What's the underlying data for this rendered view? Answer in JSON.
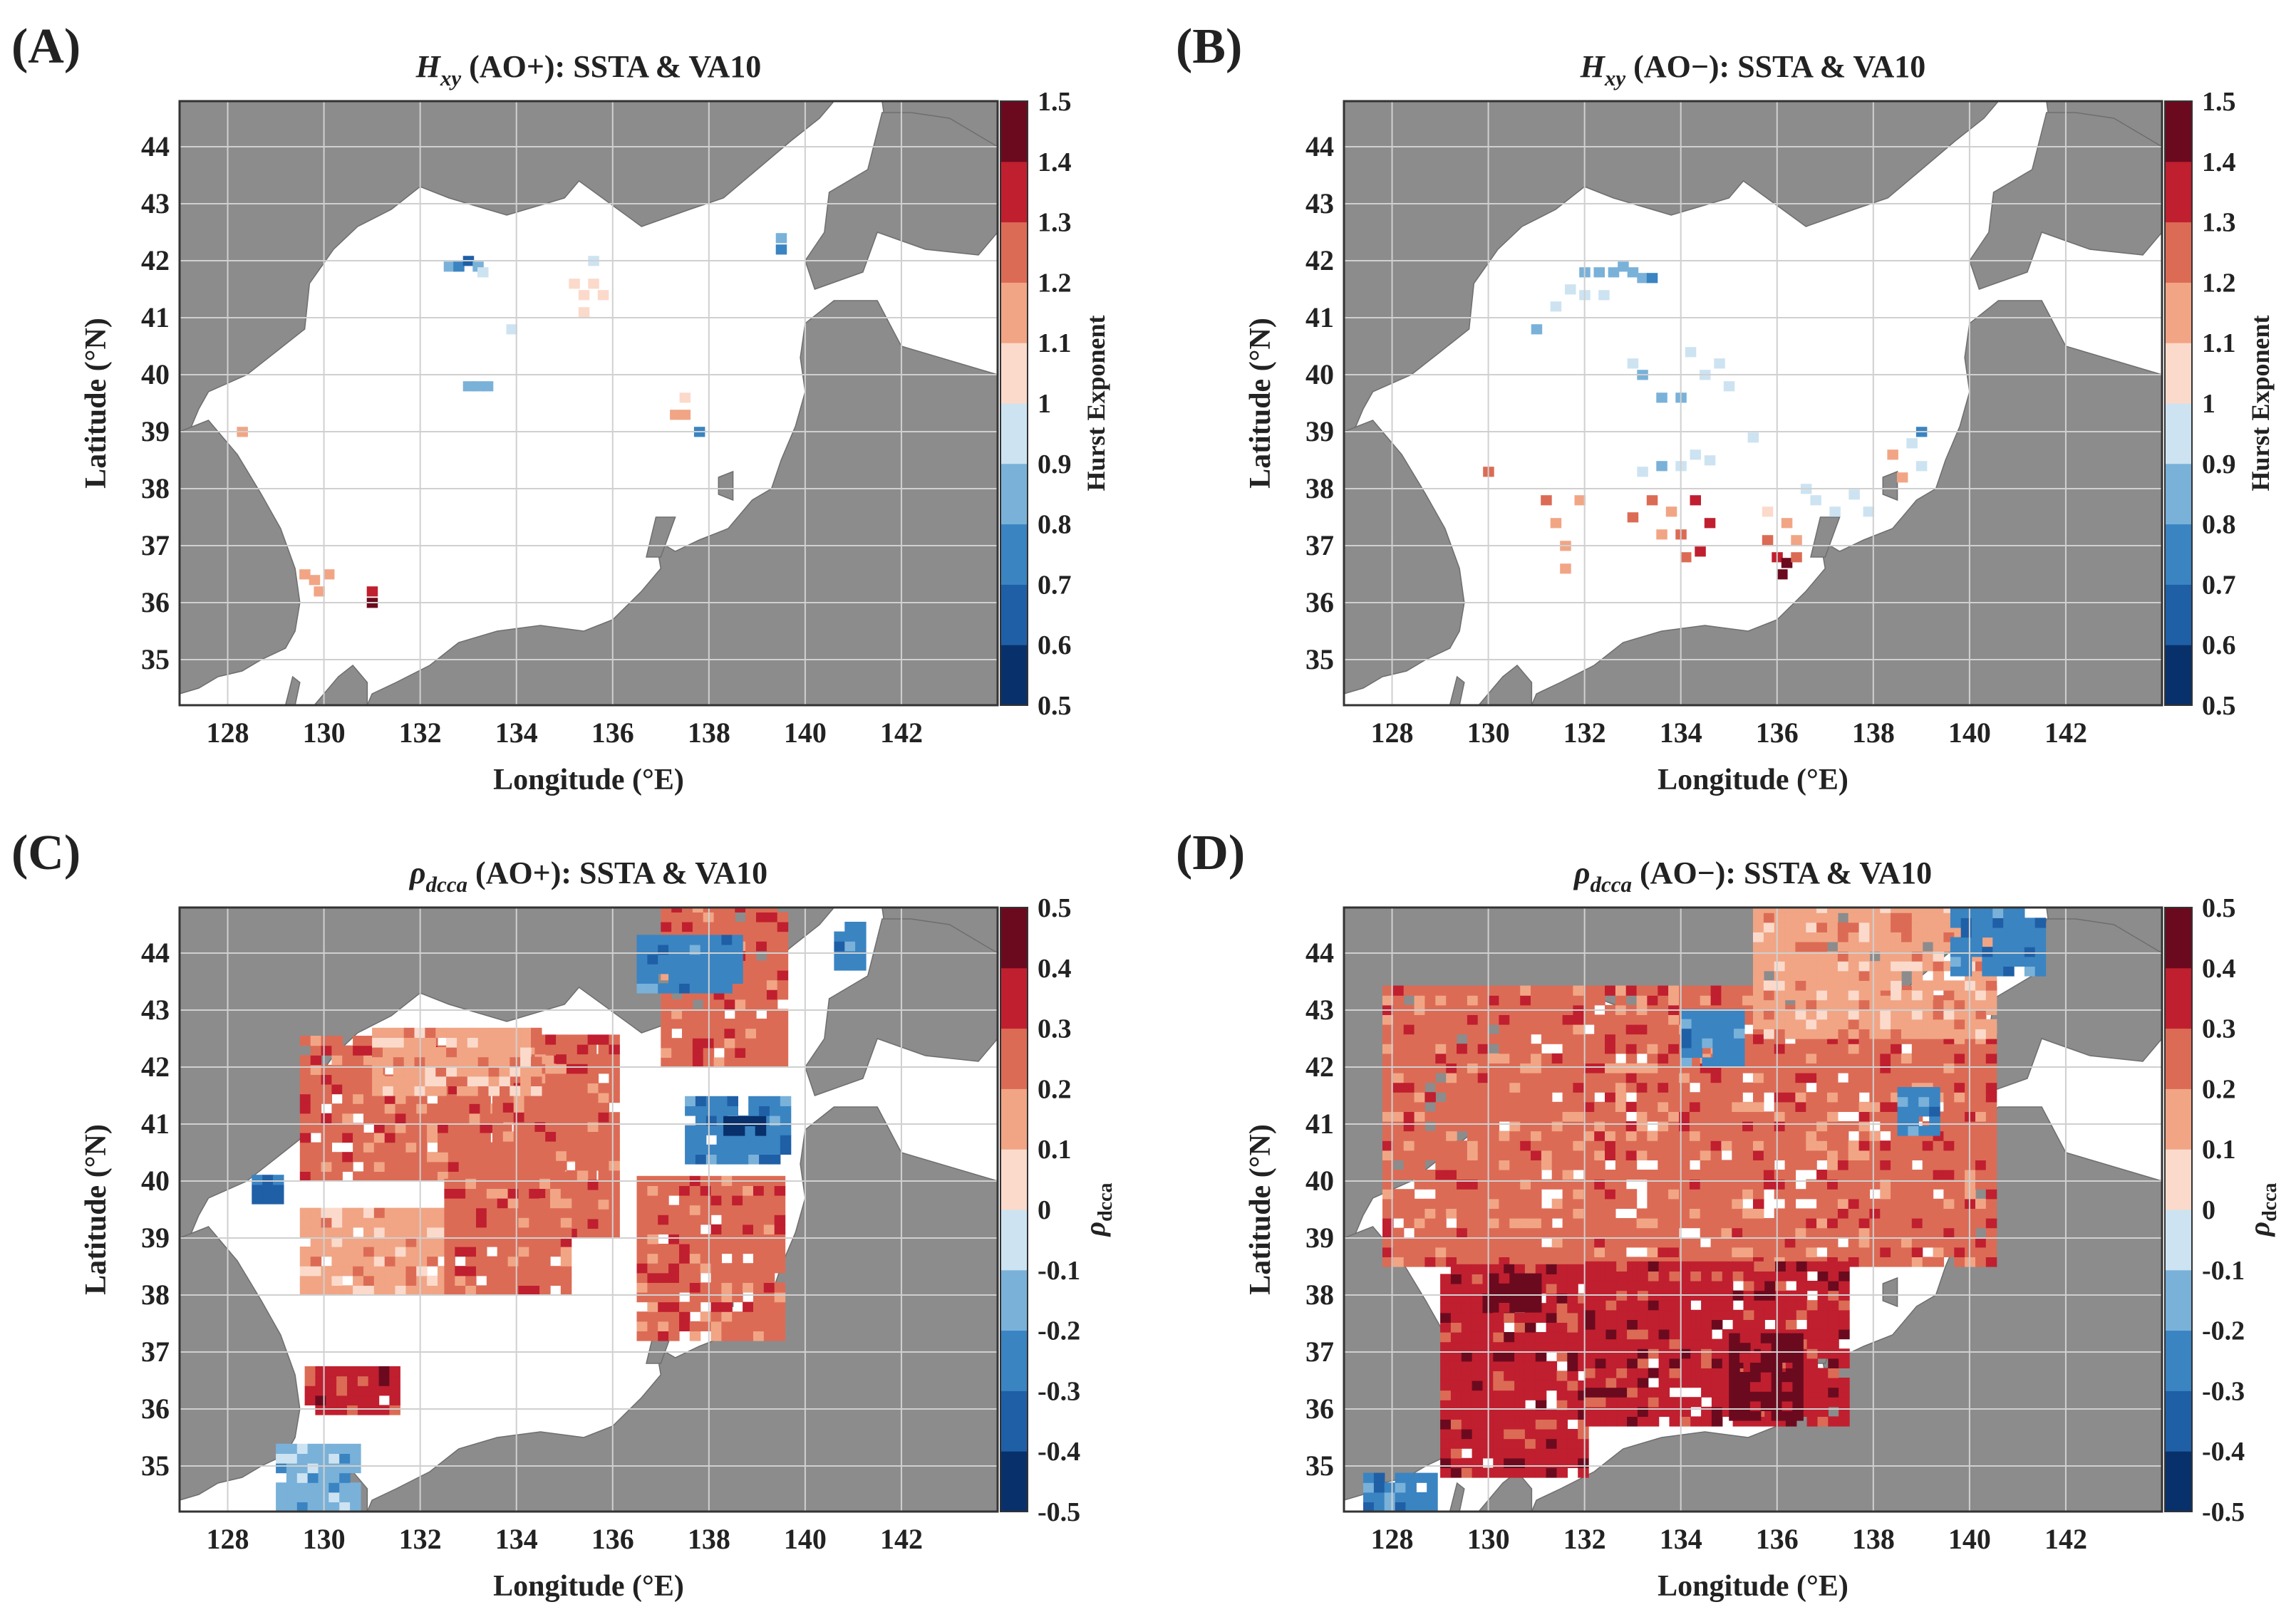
{
  "figure": {
    "panels": [
      {
        "id": "A",
        "letter": "(A)",
        "title": {
          "main": "H",
          "sub": "xy",
          "rest": " (AO+): SSTA & VA10"
        },
        "colorbar": {
          "ticks": [
            "0.5",
            "0.6",
            "0.7",
            "0.8",
            "0.9",
            "1",
            "1.1",
            "1.2",
            "1.3",
            "1.4",
            "1.5"
          ],
          "label": {
            "main": "Hurst Exponent",
            "sub": ""
          }
        }
      },
      {
        "id": "B",
        "letter": "(B)",
        "title": {
          "main": "H",
          "sub": "xy",
          "rest": " (AO−): SSTA & VA10"
        },
        "colorbar": {
          "ticks": [
            "0.5",
            "0.6",
            "0.7",
            "0.8",
            "0.9",
            "1",
            "1.1",
            "1.2",
            "1.3",
            "1.4",
            "1.5"
          ],
          "label": {
            "main": "Hurst Exponent",
            "sub": ""
          }
        }
      },
      {
        "id": "C",
        "letter": "(C)",
        "title": {
          "main": "ρ",
          "sub": "dcca",
          "rest": " (AO+): SSTA & VA10"
        },
        "colorbar": {
          "ticks": [
            "-0.5",
            "-0.4",
            "-0.3",
            "-0.2",
            "-0.1",
            "0",
            "0.1",
            "0.2",
            "0.3",
            "0.4",
            "0.5"
          ],
          "label": {
            "main": "ρ",
            "sub": "dcca"
          }
        }
      },
      {
        "id": "D",
        "letter": "(D)",
        "title": {
          "main": "ρ",
          "sub": "dcca",
          "rest": " (AO−): SSTA & VA10"
        },
        "colorbar": {
          "ticks": [
            "-0.5",
            "-0.4",
            "-0.3",
            "-0.2",
            "-0.1",
            "0",
            "0.1",
            "0.2",
            "0.3",
            "0.4",
            "0.5"
          ],
          "label": {
            "main": "ρ",
            "sub": "dcca"
          }
        }
      }
    ],
    "axes": {
      "xlabel": "Longitude (°E)",
      "ylabel": "Latitude (°N)",
      "xticks": [
        "128",
        "130",
        "132",
        "134",
        "136",
        "138",
        "140",
        "142"
      ],
      "yticks": [
        "35",
        "36",
        "37",
        "38",
        "39",
        "40",
        "41",
        "42",
        "43",
        "44"
      ]
    },
    "colors": {
      "land": "#8c8c8c",
      "sea": "#ffffff",
      "grid": "#d0d0d0",
      "scale": [
        "#08306b",
        "#1f5fa6",
        "#3a84c2",
        "#79b1d9",
        "#cde3f1",
        "#fbdacb",
        "#f1a585",
        "#dc6b55",
        "#c01f2f",
        "#6b0a1e"
      ]
    }
  },
  "chart_data": [
    {
      "type": "heatmap",
      "panel": "A",
      "title": "H_xy (AO+): SSTA & VA10",
      "xlabel": "Longitude (°E)",
      "ylabel": "Latitude (°N)",
      "xlim": [
        127,
        144
      ],
      "ylim": [
        34.2,
        44.8
      ],
      "colorbar": {
        "label": "Hurst Exponent",
        "range": [
          0.5,
          1.5
        ],
        "step": 0.1
      },
      "cells_note": "lon, lat (center), value",
      "cells": [
        [
          132.6,
          41.9,
          0.85
        ],
        [
          132.8,
          41.9,
          0.75
        ],
        [
          133.0,
          42.0,
          0.7
        ],
        [
          133.2,
          41.9,
          0.85
        ],
        [
          133.3,
          41.8,
          0.9
        ],
        [
          135.2,
          41.6,
          1.05
        ],
        [
          135.4,
          41.4,
          1.05
        ],
        [
          135.6,
          41.6,
          1.05
        ],
        [
          135.8,
          41.4,
          1.05
        ],
        [
          135.4,
          41.1,
          1.05
        ],
        [
          135.6,
          42.0,
          0.95
        ],
        [
          133.9,
          40.8,
          0.95
        ],
        [
          133.0,
          39.8,
          0.85
        ],
        [
          133.2,
          39.8,
          0.85
        ],
        [
          133.4,
          39.8,
          0.85
        ],
        [
          137.3,
          39.3,
          1.15
        ],
        [
          137.5,
          39.3,
          1.15
        ],
        [
          137.5,
          39.6,
          1.05
        ],
        [
          137.8,
          39.0,
          0.75
        ],
        [
          139.5,
          42.4,
          0.85
        ],
        [
          139.5,
          42.2,
          0.75
        ],
        [
          128.3,
          39.0,
          1.15
        ],
        [
          129.6,
          36.5,
          1.15
        ],
        [
          129.8,
          36.4,
          1.15
        ],
        [
          130.1,
          36.5,
          1.15
        ],
        [
          129.9,
          36.2,
          1.15
        ],
        [
          131.0,
          36.2,
          1.35
        ],
        [
          131.0,
          36.0,
          1.45
        ]
      ]
    },
    {
      "type": "heatmap",
      "panel": "B",
      "title": "H_xy (AO−): SSTA & VA10",
      "xlabel": "Longitude (°E)",
      "ylabel": "Latitude (°N)",
      "xlim": [
        127,
        144
      ],
      "ylim": [
        34.2,
        44.8
      ],
      "colorbar": {
        "label": "Hurst Exponent",
        "range": [
          0.5,
          1.5
        ],
        "step": 0.1
      },
      "cells_note": "lon, lat (center), value",
      "cells": [
        [
          132.0,
          41.8,
          0.85
        ],
        [
          132.3,
          41.8,
          0.85
        ],
        [
          132.6,
          41.8,
          0.85
        ],
        [
          132.8,
          41.9,
          0.85
        ],
        [
          133.0,
          41.8,
          0.85
        ],
        [
          133.2,
          41.7,
          0.8
        ],
        [
          133.4,
          41.7,
          0.75
        ],
        [
          131.7,
          41.5,
          0.9
        ],
        [
          132.0,
          41.4,
          0.9
        ],
        [
          132.4,
          41.4,
          0.9
        ],
        [
          131.4,
          41.2,
          0.9
        ],
        [
          131.0,
          40.8,
          0.8
        ],
        [
          133.0,
          40.2,
          0.9
        ],
        [
          133.2,
          40.0,
          0.85
        ],
        [
          133.6,
          39.6,
          0.85
        ],
        [
          134.0,
          39.6,
          0.85
        ],
        [
          134.2,
          40.4,
          0.95
        ],
        [
          134.5,
          40.0,
          0.9
        ],
        [
          134.8,
          40.2,
          0.9
        ],
        [
          135.0,
          39.8,
          0.9
        ],
        [
          133.2,
          38.3,
          0.9
        ],
        [
          133.6,
          38.4,
          0.85
        ],
        [
          134.0,
          38.4,
          0.9
        ],
        [
          134.3,
          38.6,
          0.95
        ],
        [
          134.6,
          38.5,
          0.95
        ],
        [
          135.5,
          38.9,
          0.95
        ],
        [
          131.2,
          37.8,
          1.25
        ],
        [
          131.4,
          37.4,
          1.15
        ],
        [
          131.6,
          37.0,
          1.15
        ],
        [
          131.6,
          36.6,
          1.15
        ],
        [
          131.9,
          37.8,
          1.15
        ],
        [
          130.0,
          38.3,
          1.25
        ],
        [
          133.0,
          37.5,
          1.25
        ],
        [
          133.4,
          37.8,
          1.25
        ],
        [
          133.8,
          37.6,
          1.15
        ],
        [
          134.0,
          37.2,
          1.25
        ],
        [
          134.3,
          37.8,
          1.35
        ],
        [
          134.6,
          37.4,
          1.35
        ],
        [
          134.4,
          36.9,
          1.35
        ],
        [
          134.1,
          36.8,
          1.25
        ],
        [
          133.6,
          37.2,
          1.15
        ],
        [
          135.8,
          37.6,
          1.05
        ],
        [
          136.2,
          37.4,
          1.15
        ],
        [
          136.4,
          37.1,
          1.15
        ],
        [
          135.8,
          37.1,
          1.25
        ],
        [
          136.0,
          36.8,
          1.35
        ],
        [
          136.2,
          36.7,
          1.4
        ],
        [
          136.1,
          36.5,
          1.45
        ],
        [
          136.4,
          36.8,
          1.25
        ],
        [
          136.8,
          37.8,
          0.95
        ],
        [
          137.2,
          37.6,
          0.9
        ],
        [
          137.6,
          37.9,
          0.9
        ],
        [
          137.9,
          37.6,
          0.95
        ],
        [
          136.6,
          38.0,
          0.9
        ],
        [
          138.4,
          38.6,
          1.15
        ],
        [
          138.6,
          38.2,
          1.15
        ],
        [
          138.8,
          38.8,
          0.95
        ],
        [
          139.0,
          38.4,
          0.95
        ],
        [
          139.0,
          39.0,
          0.75
        ]
      ]
    },
    {
      "type": "heatmap",
      "panel": "C",
      "title": "ρ_dcca (AO+): SSTA & VA10",
      "xlabel": "Longitude (°E)",
      "ylabel": "Latitude (°N)",
      "xlim": [
        127,
        144
      ],
      "ylim": [
        34.2,
        44.8
      ],
      "colorbar": {
        "label": "ρ_dcca",
        "range": [
          -0.5,
          0.5
        ],
        "step": 0.1
      },
      "regions_note": "lon range, lat range, representative value",
      "regions": [
        {
          "lon": [
            129.5,
            135.5
          ],
          "lat": [
            40.0,
            42.5
          ],
          "value": 0.25
        },
        {
          "lon": [
            133.5,
            136.0
          ],
          "lat": [
            39.0,
            42.5
          ],
          "value": 0.25
        },
        {
          "lon": [
            131.0,
            134.5
          ],
          "lat": [
            41.5,
            42.6
          ],
          "value": 0.15
        },
        {
          "lon": [
            129.5,
            132.5
          ],
          "lat": [
            38.0,
            39.5
          ],
          "value": 0.15
        },
        {
          "lon": [
            132.5,
            135.0
          ],
          "lat": [
            38.0,
            40.0
          ],
          "value": 0.25
        },
        {
          "lon": [
            136.5,
            139.5
          ],
          "lat": [
            37.2,
            40.0
          ],
          "value": 0.25
        },
        {
          "lon": [
            137.0,
            139.5
          ],
          "lat": [
            42.0,
            44.8
          ],
          "value": 0.25
        },
        {
          "lon": [
            137.5,
            139.5
          ],
          "lat": [
            40.3,
            41.5
          ],
          "value": -0.25
        },
        {
          "lon": [
            138.3,
            139.0
          ],
          "lat": [
            40.8,
            41.0
          ],
          "value": -0.45
        },
        {
          "lon": [
            136.5,
            138.5
          ],
          "lat": [
            43.3,
            44.2
          ],
          "value": -0.25
        },
        {
          "lon": [
            129.0,
            130.6
          ],
          "lat": [
            34.2,
            35.4
          ],
          "value": -0.15
        },
        {
          "lon": [
            129.6,
            131.4
          ],
          "lat": [
            35.9,
            36.6
          ],
          "value": 0.35
        },
        {
          "lon": [
            128.5,
            129.0
          ],
          "lat": [
            39.6,
            40.1
          ],
          "value": -0.35
        },
        {
          "lon": [
            140.6,
            141.2
          ],
          "lat": [
            43.7,
            44.5
          ],
          "value": -0.25
        }
      ]
    },
    {
      "type": "heatmap",
      "panel": "D",
      "title": "ρ_dcca (AO−): SSTA & VA10",
      "xlabel": "Longitude (°E)",
      "ylabel": "Latitude (°N)",
      "xlim": [
        127,
        144
      ],
      "ylim": [
        34.2,
        44.8
      ],
      "colorbar": {
        "label": "ρ_dcca",
        "range": [
          -0.5,
          0.5
        ],
        "step": 0.1
      },
      "regions_note": "lon range, lat range, representative value",
      "regions": [
        {
          "lon": [
            127.8,
            140.5
          ],
          "lat": [
            38.5,
            43.3
          ],
          "value": 0.25
        },
        {
          "lon": [
            129.0,
            132.0
          ],
          "lat": [
            34.8,
            38.5
          ],
          "value": 0.35
        },
        {
          "lon": [
            132.0,
            137.5
          ],
          "lat": [
            35.7,
            38.5
          ],
          "value": 0.35
        },
        {
          "lon": [
            135.0,
            136.5
          ],
          "lat": [
            35.8,
            37.2
          ],
          "value": 0.45
        },
        {
          "lon": [
            130.0,
            131.0
          ],
          "lat": [
            37.7,
            38.3
          ],
          "value": 0.45
        },
        {
          "lon": [
            135.5,
            140.5
          ],
          "lat": [
            42.5,
            44.8
          ],
          "value": 0.15
        },
        {
          "lon": [
            134.0,
            135.2
          ],
          "lat": [
            42.0,
            43.0
          ],
          "value": -0.25
        },
        {
          "lon": [
            139.6,
            141.5
          ],
          "lat": [
            43.6,
            44.8
          ],
          "value": -0.25
        },
        {
          "lon": [
            138.5,
            139.3
          ],
          "lat": [
            40.8,
            41.6
          ],
          "value": -0.25
        },
        {
          "lon": [
            127.4,
            128.8
          ],
          "lat": [
            34.2,
            34.8
          ],
          "value": -0.25
        }
      ]
    }
  ]
}
